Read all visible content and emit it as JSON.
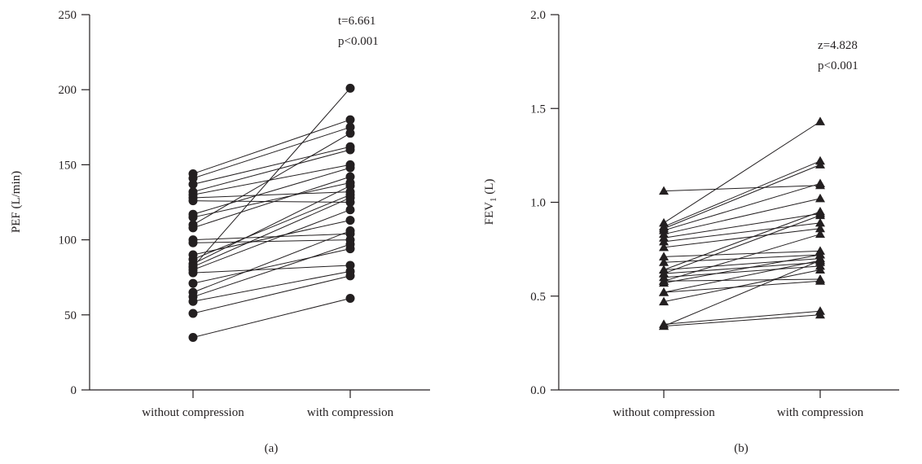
{
  "chart_data": [
    {
      "type": "line",
      "panel_label": "(a)",
      "ylabel": "PEF (L/min)",
      "xlabel": "",
      "categories": [
        "without compression",
        "with compression"
      ],
      "ylim": [
        0,
        250
      ],
      "yticks": [
        0,
        50,
        100,
        150,
        200,
        250
      ],
      "ytick_labels": [
        "0",
        "50",
        "100",
        "150",
        "200",
        "250"
      ],
      "marker": "circle",
      "annotations": [
        "t=6.661",
        "p<0.001"
      ],
      "pairs": [
        [
          144,
          180
        ],
        [
          141,
          175
        ],
        [
          137,
          162
        ],
        [
          132,
          160
        ],
        [
          130,
          150
        ],
        [
          128,
          132
        ],
        [
          126,
          125
        ],
        [
          117,
          148
        ],
        [
          115,
          138
        ],
        [
          110,
          171
        ],
        [
          108,
          142
        ],
        [
          100,
          104
        ],
        [
          98,
          100
        ],
        [
          90,
          113
        ],
        [
          87,
          130
        ],
        [
          84,
          136
        ],
        [
          82,
          128
        ],
        [
          80,
          120
        ],
        [
          78,
          83
        ],
        [
          71,
          94
        ],
        [
          65,
          106
        ],
        [
          62,
          97
        ],
        [
          59,
          79
        ],
        [
          51,
          76
        ],
        [
          35,
          61
        ],
        [
          82,
          201
        ]
      ]
    },
    {
      "type": "line",
      "panel_label": "(b)",
      "ylabel": "FEV1 (L)",
      "ylabel_main": "FEV",
      "ylabel_sub": "1",
      "ylabel_unit": " (L)",
      "xlabel": "",
      "categories": [
        "without compression",
        "with compression"
      ],
      "ylim": [
        0,
        2.0
      ],
      "yticks": [
        0,
        0.5,
        1.0,
        1.5,
        2.0
      ],
      "ytick_labels": [
        "0.0",
        "0.5",
        "1.0",
        "1.5",
        "2.0"
      ],
      "marker": "triangle",
      "annotations": [
        "z=4.828",
        "p<0.001"
      ],
      "pairs": [
        [
          1.06,
          1.09
        ],
        [
          0.89,
          1.43
        ],
        [
          0.87,
          1.22
        ],
        [
          0.85,
          1.1
        ],
        [
          0.83,
          1.02
        ],
        [
          0.81,
          0.94
        ],
        [
          0.79,
          0.89
        ],
        [
          0.76,
          0.86
        ],
        [
          0.71,
          0.74
        ],
        [
          0.68,
          0.72
        ],
        [
          0.64,
          0.7
        ],
        [
          0.62,
          0.68
        ],
        [
          0.6,
          0.66
        ],
        [
          0.58,
          0.59
        ],
        [
          0.57,
          0.72
        ],
        [
          0.52,
          0.69
        ],
        [
          0.47,
          0.64
        ],
        [
          0.35,
          0.42
        ],
        [
          0.34,
          0.4
        ],
        [
          0.34,
          0.69
        ],
        [
          0.62,
          0.93
        ],
        [
          0.86,
          1.2
        ],
        [
          0.58,
          0.83
        ],
        [
          0.52,
          0.58
        ],
        [
          0.64,
          0.95
        ]
      ]
    }
  ]
}
